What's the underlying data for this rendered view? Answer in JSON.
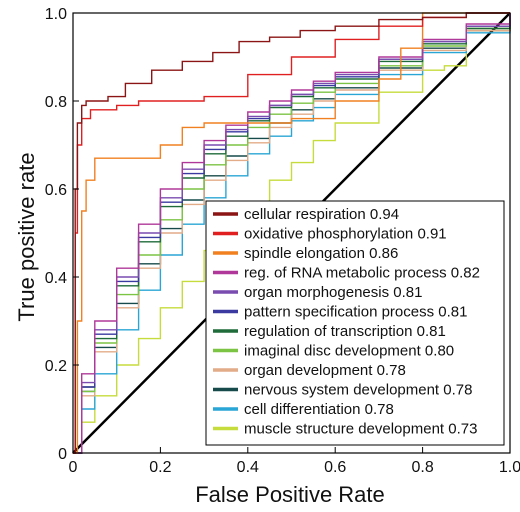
{
  "chart_data": {
    "type": "line",
    "title": "",
    "xlabel": "False Positive Rate",
    "ylabel": "True positive rate",
    "xlim": [
      0,
      1
    ],
    "ylim": [
      0,
      1
    ],
    "x_ticks": [
      "0",
      "0.2",
      "0.4",
      "0.6",
      "0.8",
      "1.0"
    ],
    "y_ticks": [
      "0",
      "0.2",
      "0.4",
      "0.6",
      "0.8",
      "1.0"
    ],
    "grid": false,
    "legend_position": "bottom-right",
    "diagonal": {
      "x": [
        0,
        1
      ],
      "y": [
        0,
        1
      ],
      "color": "#000000"
    },
    "series": [
      {
        "name": "cellular respiration",
        "auc": "0.94",
        "color": "#8b1414",
        "x": [
          0,
          0.005,
          0.01,
          0.02,
          0.03,
          0.05,
          0.08,
          0.12,
          0.18,
          0.25,
          0.32,
          0.38,
          0.45,
          0.52,
          0.6,
          0.7,
          0.8,
          0.9,
          1.0
        ],
        "y": [
          0,
          0.6,
          0.75,
          0.79,
          0.8,
          0.8,
          0.81,
          0.84,
          0.87,
          0.89,
          0.91,
          0.935,
          0.945,
          0.96,
          0.97,
          0.985,
          0.99,
          1.0,
          1.0
        ]
      },
      {
        "name": "oxidative phosphorylation",
        "auc": "0.91",
        "color": "#e02020",
        "x": [
          0,
          0.005,
          0.01,
          0.02,
          0.04,
          0.06,
          0.1,
          0.15,
          0.22,
          0.3,
          0.4,
          0.5,
          0.6,
          0.7,
          0.8,
          0.9,
          1.0
        ],
        "y": [
          0,
          0.5,
          0.7,
          0.76,
          0.78,
          0.78,
          0.79,
          0.8,
          0.8,
          0.81,
          0.86,
          0.9,
          0.94,
          0.97,
          0.99,
          1.0,
          1.0
        ]
      },
      {
        "name": "spindle elongation",
        "auc": "0.86",
        "color": "#f08020",
        "x": [
          0,
          0.01,
          0.02,
          0.03,
          0.05,
          0.1,
          0.2,
          0.25,
          0.3,
          0.4,
          0.5,
          0.6,
          0.7,
          0.75,
          0.8,
          0.9,
          1.0
        ],
        "y": [
          0,
          0.3,
          0.55,
          0.62,
          0.67,
          0.67,
          0.7,
          0.74,
          0.75,
          0.75,
          0.76,
          0.8,
          0.85,
          0.92,
          1.0,
          1.0,
          1.0
        ]
      },
      {
        "name": "reg. of RNA metabolic process",
        "auc": "0.82",
        "color": "#b0389a",
        "x": [
          0,
          0.02,
          0.05,
          0.1,
          0.15,
          0.2,
          0.25,
          0.3,
          0.35,
          0.4,
          0.45,
          0.5,
          0.55,
          0.6,
          0.7,
          0.8,
          0.9,
          1.0
        ],
        "y": [
          0,
          0.18,
          0.3,
          0.42,
          0.52,
          0.6,
          0.66,
          0.71,
          0.745,
          0.775,
          0.8,
          0.825,
          0.845,
          0.865,
          0.9,
          0.94,
          0.975,
          1.0
        ]
      },
      {
        "name": "organ morphogenesis",
        "auc": "0.81",
        "color": "#7a4cb0",
        "x": [
          0,
          0.02,
          0.05,
          0.1,
          0.15,
          0.2,
          0.25,
          0.3,
          0.35,
          0.4,
          0.45,
          0.5,
          0.55,
          0.6,
          0.7,
          0.8,
          0.9,
          1.0
        ],
        "y": [
          0,
          0.16,
          0.28,
          0.4,
          0.5,
          0.58,
          0.645,
          0.7,
          0.735,
          0.765,
          0.79,
          0.815,
          0.84,
          0.86,
          0.895,
          0.935,
          0.97,
          1.0
        ]
      },
      {
        "name": "pattern specification process",
        "auc": "0.81",
        "color": "#3a3aa0",
        "x": [
          0,
          0.02,
          0.05,
          0.1,
          0.15,
          0.2,
          0.25,
          0.3,
          0.35,
          0.4,
          0.45,
          0.5,
          0.55,
          0.6,
          0.7,
          0.8,
          0.9,
          1.0
        ],
        "y": [
          0,
          0.15,
          0.27,
          0.39,
          0.49,
          0.57,
          0.635,
          0.69,
          0.73,
          0.76,
          0.79,
          0.815,
          0.835,
          0.855,
          0.895,
          0.935,
          0.97,
          1.0
        ]
      },
      {
        "name": "regulation of transcription",
        "auc": "0.81",
        "color": "#1f6b3a",
        "x": [
          0,
          0.02,
          0.05,
          0.1,
          0.15,
          0.2,
          0.25,
          0.3,
          0.35,
          0.4,
          0.45,
          0.5,
          0.55,
          0.6,
          0.7,
          0.8,
          0.9,
          1.0
        ],
        "y": [
          0,
          0.15,
          0.26,
          0.38,
          0.48,
          0.56,
          0.625,
          0.68,
          0.72,
          0.755,
          0.785,
          0.81,
          0.83,
          0.85,
          0.89,
          0.93,
          0.965,
          1.0
        ]
      },
      {
        "name": "imaginal disc development",
        "auc": "0.80",
        "color": "#7cc444",
        "x": [
          0,
          0.02,
          0.05,
          0.1,
          0.15,
          0.2,
          0.25,
          0.3,
          0.35,
          0.4,
          0.45,
          0.5,
          0.55,
          0.6,
          0.7,
          0.8,
          0.9,
          1.0
        ],
        "y": [
          0,
          0.14,
          0.25,
          0.36,
          0.45,
          0.53,
          0.6,
          0.655,
          0.7,
          0.74,
          0.77,
          0.795,
          0.82,
          0.84,
          0.88,
          0.925,
          0.965,
          1.0
        ]
      },
      {
        "name": "organ development",
        "auc": "0.78",
        "color": "#e2ac88",
        "x": [
          0,
          0.02,
          0.05,
          0.1,
          0.15,
          0.2,
          0.25,
          0.3,
          0.35,
          0.4,
          0.45,
          0.5,
          0.55,
          0.6,
          0.7,
          0.8,
          0.9,
          1.0
        ],
        "y": [
          0,
          0.13,
          0.23,
          0.33,
          0.42,
          0.5,
          0.565,
          0.62,
          0.665,
          0.705,
          0.74,
          0.77,
          0.8,
          0.825,
          0.87,
          0.915,
          0.96,
          1.0
        ]
      },
      {
        "name": "nervous system development",
        "auc": "0.78",
        "color": "#174a4a",
        "x": [
          0,
          0.02,
          0.05,
          0.1,
          0.15,
          0.2,
          0.25,
          0.3,
          0.35,
          0.4,
          0.45,
          0.5,
          0.55,
          0.6,
          0.7,
          0.8,
          0.9,
          1.0
        ],
        "y": [
          0,
          0.14,
          0.24,
          0.34,
          0.43,
          0.51,
          0.575,
          0.63,
          0.675,
          0.715,
          0.75,
          0.78,
          0.805,
          0.83,
          0.875,
          0.92,
          0.96,
          1.0
        ]
      },
      {
        "name": "cell differentiation",
        "auc": "0.78",
        "color": "#2aa6d6",
        "x": [
          0,
          0.02,
          0.05,
          0.1,
          0.15,
          0.2,
          0.25,
          0.3,
          0.35,
          0.4,
          0.45,
          0.5,
          0.55,
          0.6,
          0.7,
          0.8,
          0.9,
          1.0
        ],
        "y": [
          0,
          0.1,
          0.18,
          0.28,
          0.37,
          0.45,
          0.52,
          0.58,
          0.63,
          0.68,
          0.72,
          0.755,
          0.785,
          0.815,
          0.86,
          0.91,
          0.955,
          1.0
        ]
      },
      {
        "name": "muscle structure development",
        "auc": "0.73",
        "color": "#c6dc3c",
        "x": [
          0,
          0.02,
          0.05,
          0.1,
          0.15,
          0.2,
          0.25,
          0.3,
          0.35,
          0.4,
          0.45,
          0.5,
          0.55,
          0.6,
          0.7,
          0.8,
          0.85,
          0.9,
          1.0
        ],
        "y": [
          0,
          0.07,
          0.13,
          0.2,
          0.26,
          0.33,
          0.39,
          0.46,
          0.52,
          0.57,
          0.62,
          0.66,
          0.71,
          0.75,
          0.82,
          0.87,
          0.88,
          0.96,
          1.0
        ]
      }
    ]
  }
}
